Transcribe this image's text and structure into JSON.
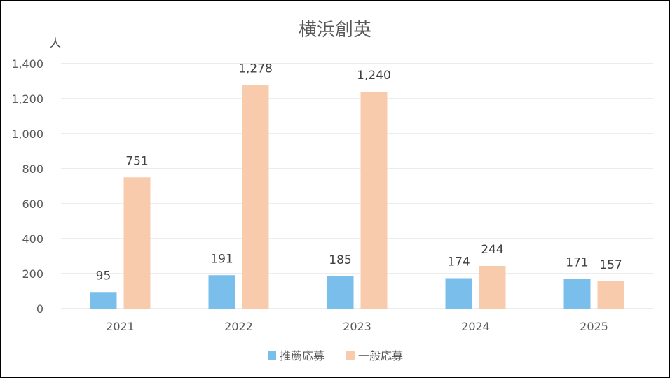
{
  "chart_data": {
    "type": "bar",
    "title": "横浜創英",
    "unit": "人",
    "categories": [
      "2021",
      "2022",
      "2023",
      "2024",
      "2025"
    ],
    "series": [
      {
        "name": "推薦応募",
        "color": "#7ABFEC",
        "values": [
          95,
          191,
          185,
          174,
          171
        ]
      },
      {
        "name": "一般応募",
        "color": "#F8CBAD",
        "values": [
          751,
          1278,
          1240,
          244,
          157
        ]
      }
    ],
    "y_ticks": [
      "0",
      "200",
      "400",
      "600",
      "800",
      "1,000",
      "1,200",
      "1,400"
    ],
    "ylim": [
      0,
      1400
    ],
    "grid": true,
    "legend_position": "bottom"
  }
}
